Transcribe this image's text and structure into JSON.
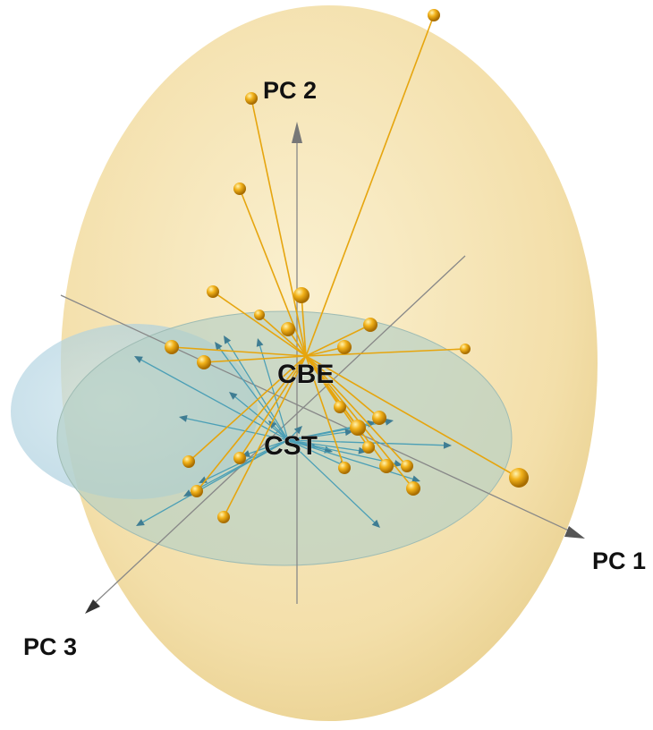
{
  "chart_data": {
    "type": "scatter",
    "projection": "3d",
    "axes": [
      "PC 1",
      "PC 2",
      "PC 3"
    ],
    "groups": [
      {
        "name": "CBE",
        "color": "#e6a50e",
        "marker": "sphere",
        "ellipsoid": true
      },
      {
        "name": "CST",
        "color": "#4b9fb6",
        "marker": "arrow",
        "ellipsoid": true
      }
    ],
    "grid": false,
    "legend": "none",
    "colors": {
      "cbe": "#e6a50e",
      "cst": "#4b9fb6",
      "cbe_ellipsoid": "#f4dc9b",
      "cst_ellipsoid": "#b9d8e4",
      "axis": "#888888"
    }
  },
  "labels": {
    "pc1": "PC 1",
    "pc2": "PC 2",
    "pc3": "PC 3",
    "cbe": "CBE",
    "cst": "CST"
  }
}
